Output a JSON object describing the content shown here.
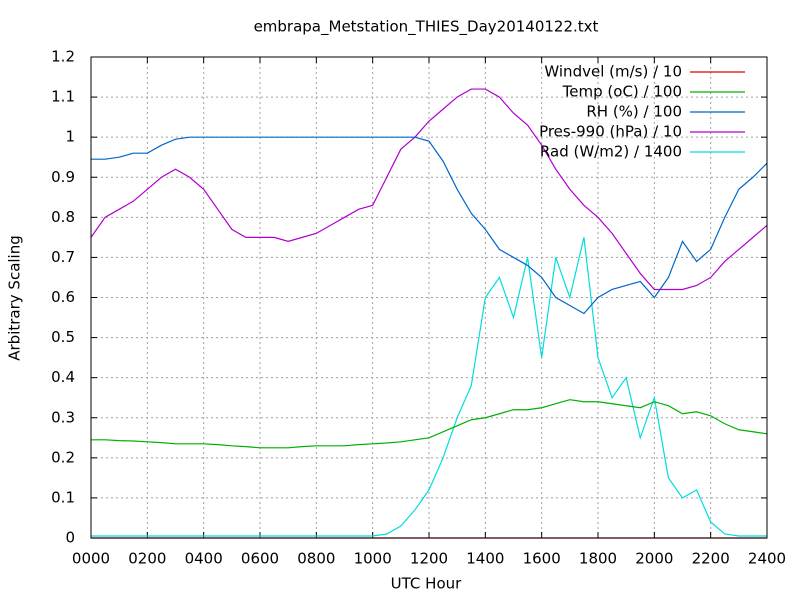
{
  "chart_data": {
    "type": "line",
    "title": "embrapa_Metstation_THIES_Day20140122.txt",
    "xlabel": "UTC Hour",
    "ylabel": "Arbitrary Scaling",
    "x": [
      0,
      0.5,
      1,
      1.5,
      2,
      2.5,
      3,
      3.5,
      4,
      4.5,
      5,
      5.5,
      6,
      6.5,
      7,
      7.5,
      8,
      8.5,
      9,
      9.5,
      10,
      10.5,
      11,
      11.5,
      12,
      12.5,
      13,
      13.5,
      14,
      14.5,
      15,
      15.5,
      16,
      16.5,
      17,
      17.5,
      18,
      18.5,
      19,
      19.5,
      20,
      20.5,
      21,
      21.5,
      22,
      22.5,
      23,
      23.5,
      24
    ],
    "series": [
      {
        "name": "Windvel (m/s) / 10",
        "color": "#e00000",
        "values": [
          0,
          0,
          0,
          0,
          0,
          0,
          0,
          0,
          0,
          0,
          0,
          0,
          0,
          0,
          0,
          0,
          0,
          0,
          0,
          0,
          0,
          0,
          0,
          0,
          0,
          0,
          0,
          0,
          0,
          0,
          0,
          0,
          0,
          0,
          0,
          0,
          0,
          0,
          0,
          0,
          0,
          0,
          0,
          0,
          0,
          0,
          0,
          0,
          0
        ]
      },
      {
        "name": "Temp (oC) / 100",
        "color": "#00b000",
        "values": [
          0.245,
          0.245,
          0.243,
          0.242,
          0.24,
          0.238,
          0.235,
          0.235,
          0.235,
          0.233,
          0.23,
          0.228,
          0.225,
          0.225,
          0.225,
          0.228,
          0.23,
          0.23,
          0.23,
          0.233,
          0.235,
          0.237,
          0.24,
          0.245,
          0.25,
          0.265,
          0.28,
          0.295,
          0.3,
          0.31,
          0.32,
          0.32,
          0.325,
          0.335,
          0.345,
          0.34,
          0.34,
          0.335,
          0.33,
          0.325,
          0.34,
          0.33,
          0.31,
          0.315,
          0.305,
          0.285,
          0.27,
          0.265,
          0.26
        ]
      },
      {
        "name": "RH (%) / 100",
        "color": "#0066cc",
        "values": [
          0.945,
          0.945,
          0.95,
          0.96,
          0.96,
          0.98,
          0.995,
          1,
          1,
          1,
          1,
          1,
          1,
          1,
          1,
          1,
          1,
          1,
          1,
          1,
          1,
          1,
          1,
          1,
          0.99,
          0.94,
          0.87,
          0.81,
          0.77,
          0.72,
          0.7,
          0.68,
          0.65,
          0.6,
          0.58,
          0.56,
          0.6,
          0.62,
          0.63,
          0.64,
          0.6,
          0.65,
          0.74,
          0.69,
          0.72,
          0.8,
          0.87,
          0.9,
          0.935
        ]
      },
      {
        "name": "Pres-990 (hPa) / 10",
        "color": "#b000d0",
        "values": [
          0.75,
          0.8,
          0.82,
          0.84,
          0.87,
          0.9,
          0.92,
          0.9,
          0.87,
          0.82,
          0.77,
          0.75,
          0.75,
          0.75,
          0.74,
          0.75,
          0.76,
          0.78,
          0.8,
          0.82,
          0.83,
          0.9,
          0.97,
          1.0,
          1.04,
          1.07,
          1.1,
          1.12,
          1.12,
          1.1,
          1.06,
          1.03,
          0.98,
          0.92,
          0.87,
          0.83,
          0.8,
          0.76,
          0.71,
          0.66,
          0.62,
          0.62,
          0.62,
          0.63,
          0.65,
          0.69,
          0.72,
          0.75,
          0.78
        ]
      },
      {
        "name": "Rad (W/m2) / 1400",
        "color": "#00dddd",
        "values": [
          0.005,
          0.005,
          0.005,
          0.005,
          0.005,
          0.005,
          0.005,
          0.005,
          0.005,
          0.005,
          0.005,
          0.005,
          0.005,
          0.005,
          0.005,
          0.005,
          0.005,
          0.005,
          0.005,
          0.005,
          0.005,
          0.01,
          0.03,
          0.07,
          0.12,
          0.2,
          0.3,
          0.38,
          0.6,
          0.65,
          0.55,
          0.7,
          0.45,
          0.7,
          0.6,
          0.75,
          0.45,
          0.35,
          0.4,
          0.25,
          0.35,
          0.15,
          0.1,
          0.12,
          0.04,
          0.01,
          0.005,
          0.005,
          0.005
        ]
      }
    ],
    "xlim": [
      0,
      24
    ],
    "xticks": [
      {
        "value": 0,
        "label": "0000"
      },
      {
        "value": 2,
        "label": "0200"
      },
      {
        "value": 4,
        "label": "0400"
      },
      {
        "value": 6,
        "label": "0600"
      },
      {
        "value": 8,
        "label": "0800"
      },
      {
        "value": 10,
        "label": "1000"
      },
      {
        "value": 12,
        "label": "1200"
      },
      {
        "value": 14,
        "label": "1400"
      },
      {
        "value": 16,
        "label": "1600"
      },
      {
        "value": 18,
        "label": "1800"
      },
      {
        "value": 20,
        "label": "2000"
      },
      {
        "value": 22,
        "label": "2200"
      },
      {
        "value": 24,
        "label": "2400"
      }
    ],
    "ylim": [
      0,
      1.2
    ],
    "yticks": [
      0,
      0.1,
      0.2,
      0.3,
      0.4,
      0.5,
      0.6,
      0.7,
      0.8,
      0.9,
      1,
      1.1,
      1.2
    ],
    "grid": true,
    "legend": "top-right"
  }
}
